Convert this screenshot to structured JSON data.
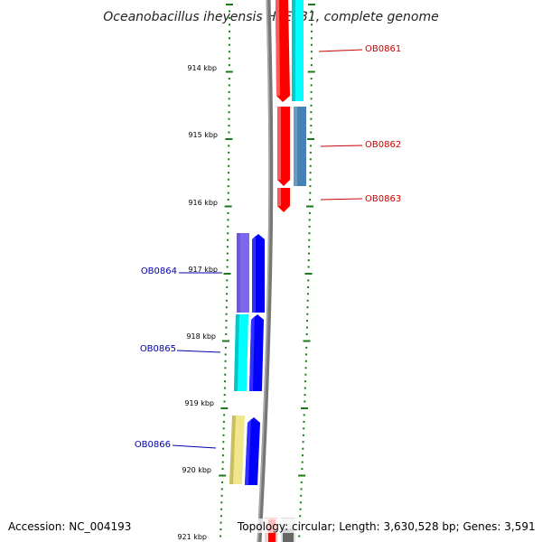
{
  "title": "Oceanobacillus iheyensis HTE831, complete genome",
  "accession": "Accession: NC_004193",
  "topology": "Topology: circular; Length: 3,630,528 bp; Genes: 3,591",
  "ruler": {
    "unit": "kbp",
    "labels": [
      "914 kbp",
      "915 kbp",
      "916 kbp",
      "917 kbp",
      "918 kbp",
      "919 kbp",
      "920 kbp",
      "921 kbp"
    ],
    "tick_color": "#1a7a1a"
  },
  "genes": [
    {
      "id": "OB0861",
      "strand": "+",
      "color": "#ff0000",
      "label_color": "#cc0000"
    },
    {
      "id": "OB0862",
      "strand": "+",
      "color": "#ff0000",
      "label_color": "#cc0000"
    },
    {
      "id": "OB0863",
      "strand": "+",
      "color": "#ff0000",
      "label_color": "#cc0000"
    },
    {
      "id": "OB0864",
      "strand": "-",
      "color": "#0000ff",
      "label_color": "#0000aa"
    },
    {
      "id": "OB0865",
      "strand": "-",
      "color": "#0000ff",
      "label_color": "#0000aa"
    },
    {
      "id": "OB0866",
      "strand": "-",
      "color": "#0000ff",
      "label_color": "#0000aa"
    }
  ],
  "category_colors": [
    "#00ffff",
    "#4682b4",
    "#7b68ee",
    "#f0e68c"
  ],
  "backbone_color": "#808080"
}
